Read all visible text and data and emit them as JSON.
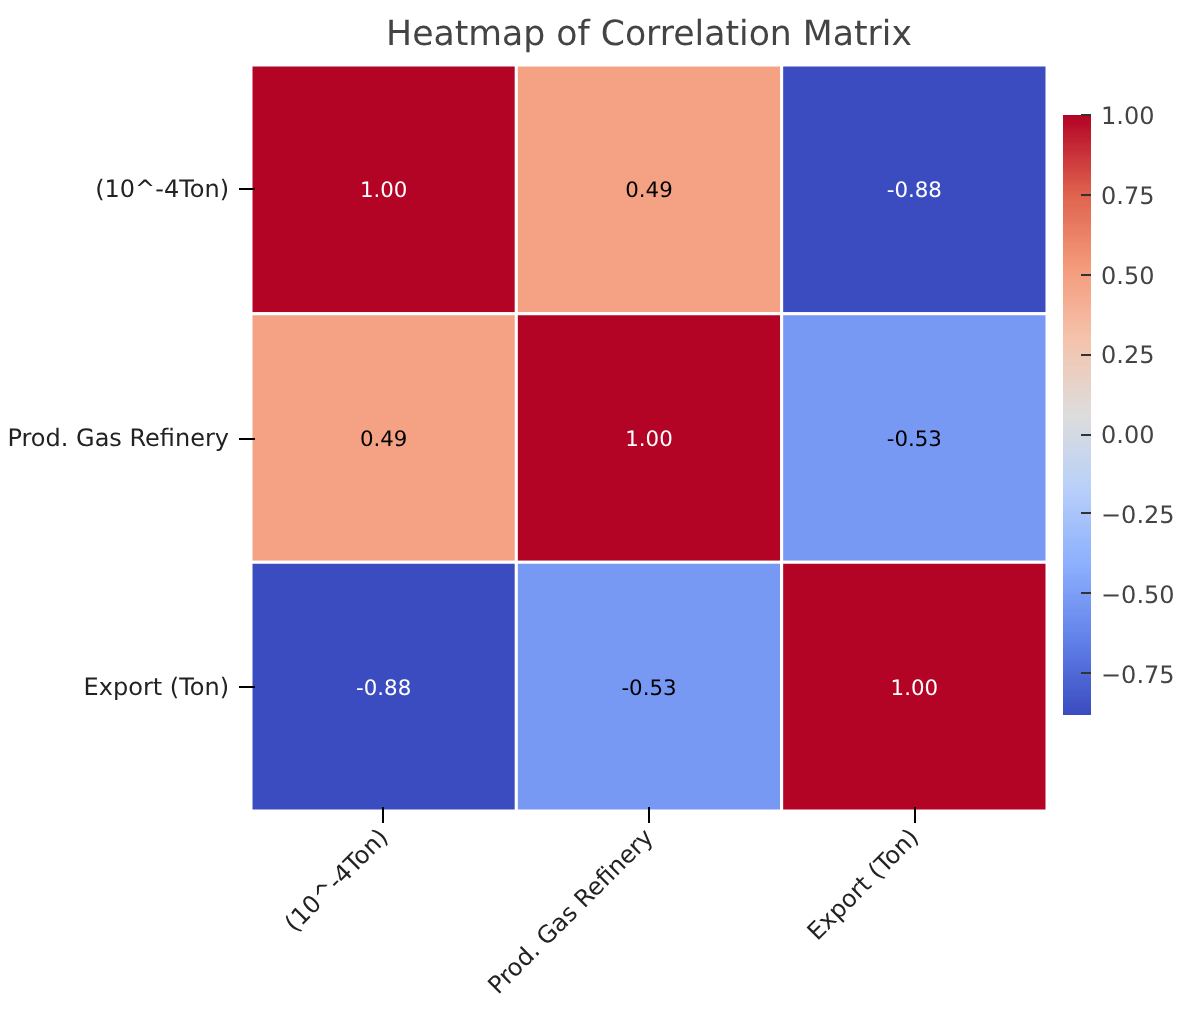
{
  "chart_data": {
    "type": "heatmap",
    "title": "Heatmap of Correlation Matrix",
    "categories": [
      "(10^-4Ton)",
      "Prod. Gas Refinery",
      "Export (Ton)"
    ],
    "y_categories": [
      "(10^-4Ton)",
      "Prod. Gas Refinery",
      "Export (Ton)"
    ],
    "cells": [
      [
        1.0,
        0.49,
        -0.88
      ],
      [
        0.49,
        1.0,
        -0.53
      ],
      [
        -0.88,
        -0.53,
        1.0
      ]
    ],
    "cell_labels": [
      [
        "1.00",
        "0.49",
        "-0.88"
      ],
      [
        "0.49",
        "1.00",
        "-0.53"
      ],
      [
        "-0.88",
        "-0.53",
        "1.00"
      ]
    ],
    "clim": [
      -0.88,
      1.0
    ],
    "cticks": [
      {
        "value": -0.75,
        "label": "−0.75"
      },
      {
        "value": -0.5,
        "label": "−0.50"
      },
      {
        "value": -0.25,
        "label": "−0.25"
      },
      {
        "value": 0,
        "label": "0.00"
      },
      {
        "value": 0.25,
        "label": "0.25"
      },
      {
        "value": 0.5,
        "label": "0.50"
      },
      {
        "value": 0.75,
        "label": "0.75"
      },
      {
        "value": 1.0,
        "label": "1.00"
      }
    ]
  }
}
